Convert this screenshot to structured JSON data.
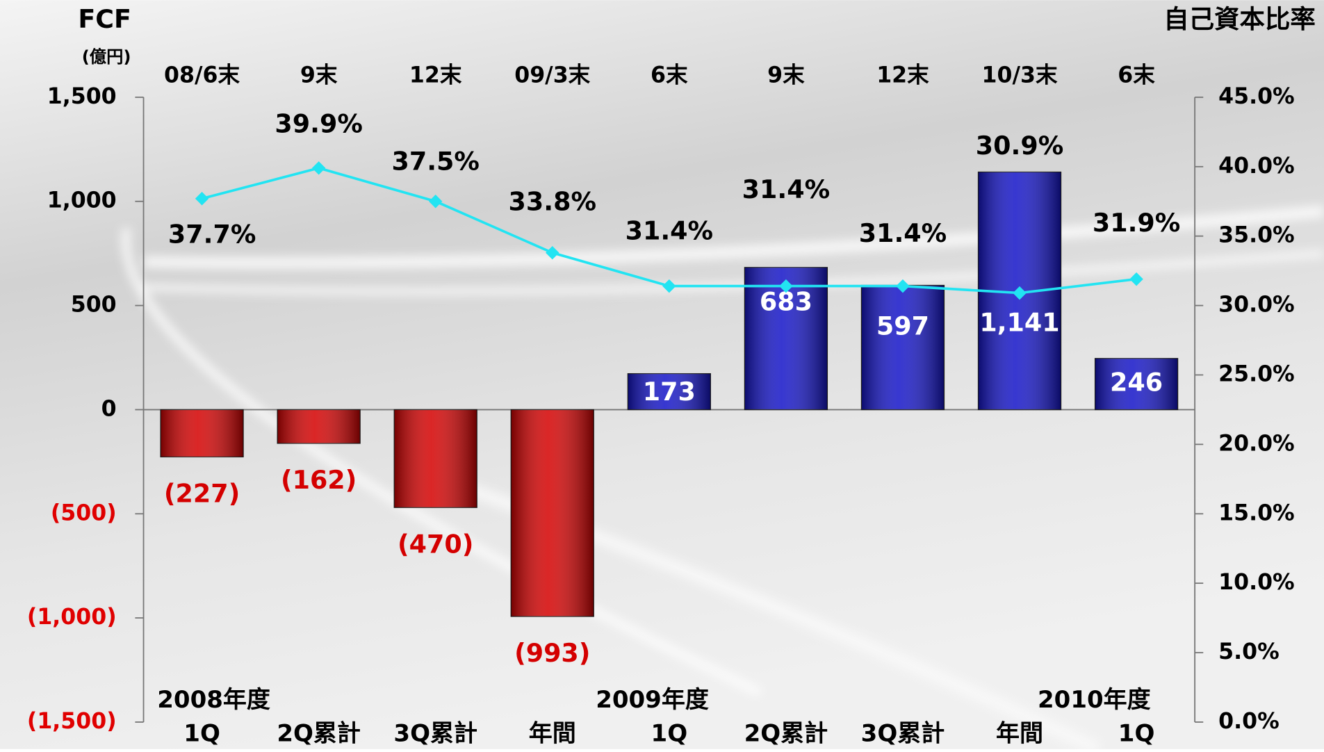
{
  "chart_data": {
    "type": "bar_line",
    "title": "FCF",
    "y_axis_unit": "(億円)",
    "y2_axis_label": "自己資本比率",
    "categories": [
      "1Q",
      "2Q累計",
      "3Q累計",
      "年間",
      "1Q",
      "2Q累計",
      "3Q累計",
      "年間",
      "1Q"
    ],
    "category_groups": [
      "2008年度",
      null,
      null,
      null,
      "2009年度",
      null,
      null,
      null,
      "2010年度"
    ],
    "period_ends": [
      "08/6末",
      "9末",
      "12末",
      "09/3末",
      "6末",
      "9末",
      "12末",
      "10/3末",
      "6末"
    ],
    "series": [
      {
        "type": "bar",
        "color": "#1414c8",
        "negative_color": "#d40000",
        "values": [
          -227,
          -162,
          -470,
          -993,
          173,
          683,
          597,
          1141,
          246
        ],
        "value_labels": [
          "(227)",
          "(162)",
          "(470)",
          "(993)",
          "173",
          "683",
          "597",
          "1,141",
          "246"
        ]
      },
      {
        "type": "line",
        "axis": "y2",
        "color": "#22e4f2",
        "values": [
          37.7,
          39.9,
          37.5,
          33.8,
          31.4,
          31.4,
          31.4,
          30.9,
          31.9
        ],
        "value_labels": [
          "37.7%",
          "39.9%",
          "37.5%",
          "33.8%",
          "31.4%",
          "31.4%",
          "31.4%",
          "30.9%",
          "31.9%"
        ]
      }
    ],
    "ylim": [
      -1500,
      1500
    ],
    "yticks": [
      {
        "value": -1500,
        "label": "(1,500)"
      },
      {
        "value": -1000,
        "label": "(1,000)"
      },
      {
        "value": -500,
        "label": "(500)"
      },
      0,
      500,
      {
        "value": 1000,
        "label": "1,000"
      },
      {
        "value": 1500,
        "label": "1,500"
      }
    ],
    "y2lim": [
      0,
      45
    ],
    "y2ticks": [
      {
        "value": 0,
        "label": "0.0%"
      },
      {
        "value": 5,
        "label": "5.0%"
      },
      {
        "value": 10,
        "label": "10.0%"
      },
      {
        "value": 15,
        "label": "15.0%"
      },
      {
        "value": 20,
        "label": "20.0%"
      },
      {
        "value": 25,
        "label": "25.0%"
      },
      {
        "value": 30,
        "label": "30.0%"
      },
      {
        "value": 35,
        "label": "35.0%"
      },
      {
        "value": 40,
        "label": "40.0%"
      },
      {
        "value": 45,
        "label": "45.0%"
      }
    ],
    "negative_tick_color": "#e00000"
  }
}
